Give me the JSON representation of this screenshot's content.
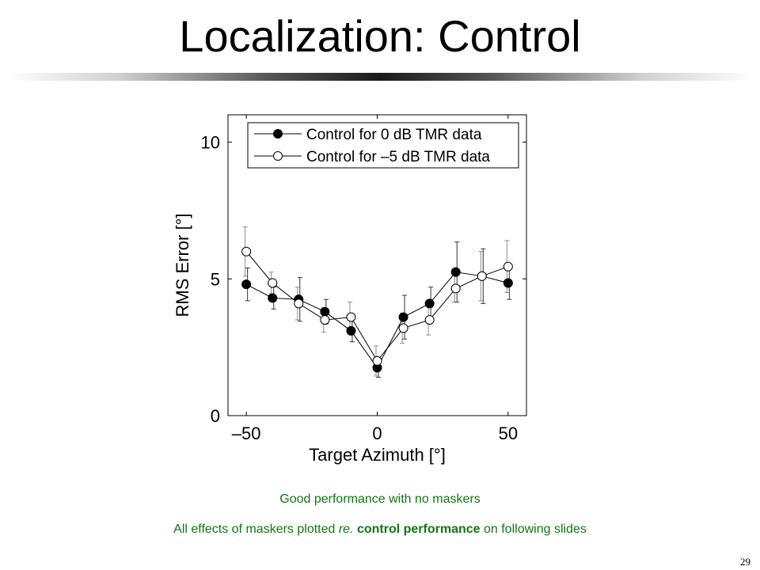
{
  "slide": {
    "title": "Localization: Control",
    "caption1": "Good performance with no maskers",
    "caption2": {
      "before": "All effects of maskers plotted ",
      "italic": "re.",
      "bold": " control performance",
      "after": " on following slides"
    },
    "page_number": "29"
  },
  "chart_data": {
    "type": "line",
    "xlabel": "Target Azimuth [°]",
    "ylabel": "RMS Error [°]",
    "xlim": [
      -57,
      57
    ],
    "ylim": [
      0,
      11
    ],
    "xticks": [
      -50,
      0,
      50
    ],
    "xtick_labels": [
      "–50",
      "0",
      "50"
    ],
    "yticks": [
      0,
      5,
      10
    ],
    "ytick_labels": [
      "0",
      "5",
      "10"
    ],
    "grid": false,
    "legend_position": "top-right",
    "x": [
      -50,
      -40,
      -30,
      -20,
      -10,
      0,
      10,
      20,
      30,
      40,
      50
    ],
    "series": [
      {
        "name": "Control for 0 dB TMR data",
        "marker": "filled-circle",
        "values": [
          4.8,
          4.3,
          4.25,
          3.8,
          3.1,
          1.75,
          3.6,
          4.1,
          5.25,
          5.1,
          4.85
        ],
        "errors": [
          0.6,
          0.4,
          0.8,
          0.45,
          0.4,
          0.35,
          0.8,
          0.6,
          1.1,
          1.0,
          0.6
        ]
      },
      {
        "name": "Control for –5 dB TMR data",
        "marker": "open-circle",
        "values": [
          6.0,
          4.85,
          4.1,
          3.5,
          3.6,
          2.0,
          3.2,
          3.5,
          4.65,
          5.1,
          5.45
        ],
        "errors": [
          0.9,
          0.4,
          0.6,
          0.45,
          0.55,
          0.55,
          0.55,
          0.55,
          0.5,
          0.9,
          0.95
        ]
      }
    ]
  }
}
